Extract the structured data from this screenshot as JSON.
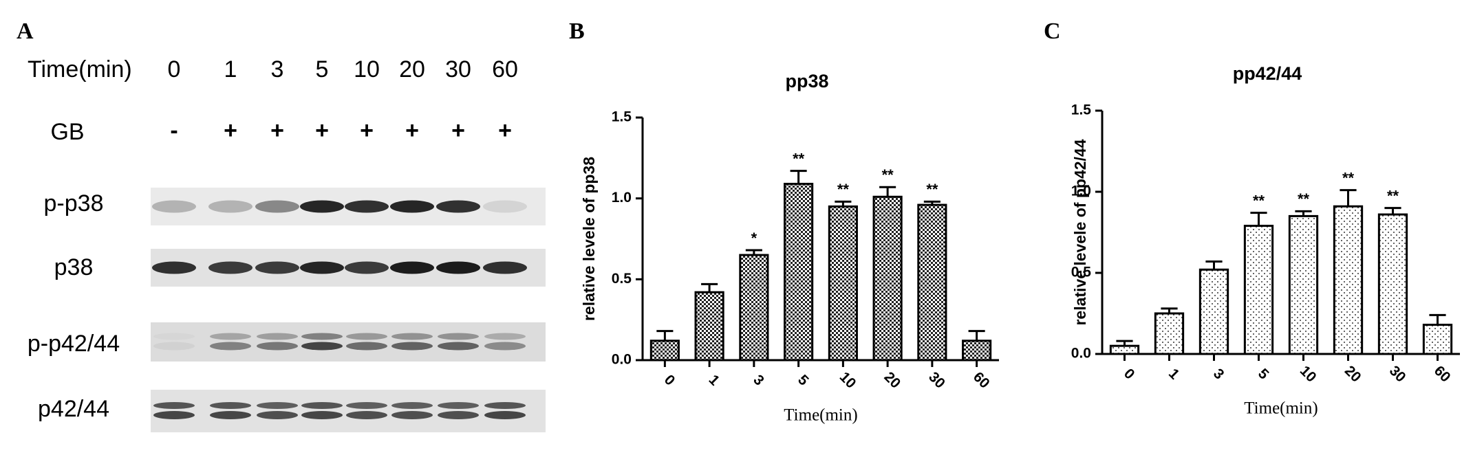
{
  "blot": {
    "panel": "A",
    "time_label": "Time(min)",
    "times": [
      "0",
      "1",
      "3",
      "5",
      "10",
      "20",
      "30",
      "60"
    ],
    "treatment_label": "GB",
    "treatments": [
      "-",
      "+",
      "+",
      "+",
      "+",
      "+",
      "+",
      "+"
    ],
    "bands": [
      "p-p38",
      "p38",
      "p-p42/44",
      "p42/44"
    ]
  },
  "chart_data": [
    {
      "type": "bar",
      "panel": "B",
      "title": "pp38",
      "y_label": "relative levele of pp38",
      "x_label": "Time(min)",
      "categories": [
        "0",
        "1",
        "3",
        "5",
        "10",
        "20",
        "30",
        "60"
      ],
      "values": [
        0.12,
        0.42,
        0.65,
        1.09,
        0.95,
        1.01,
        0.96,
        0.12
      ],
      "errors": [
        0.06,
        0.05,
        0.03,
        0.08,
        0.03,
        0.06,
        0.02,
        0.06
      ],
      "annotations": [
        null,
        null,
        "*",
        "**",
        "**",
        "**",
        "**",
        null
      ],
      "ylim": [
        0,
        1.5
      ],
      "yticks": [
        {
          "value": 0,
          "label": "0.0"
        },
        0.5,
        {
          "value": 1,
          "label": "1.0"
        },
        1.5
      ],
      "pattern": "checker",
      "color": "#000000"
    },
    {
      "type": "bar",
      "panel": "C",
      "title": "pp42/44",
      "y_label": "relative levele of pp42/44",
      "x_label": "Time(min)",
      "categories": [
        "0",
        "1",
        "3",
        "5",
        "10",
        "20",
        "30",
        "60"
      ],
      "values": [
        0.05,
        0.25,
        0.52,
        0.79,
        0.85,
        0.91,
        0.86,
        0.18
      ],
      "errors": [
        0.03,
        0.03,
        0.05,
        0.08,
        0.03,
        0.1,
        0.04,
        0.06
      ],
      "annotations": [
        null,
        null,
        null,
        "**",
        "**",
        "**",
        "**",
        null
      ],
      "ylim": [
        0,
        1.5
      ],
      "yticks": [
        {
          "value": 0,
          "label": "0.0"
        },
        0.5,
        {
          "value": 1,
          "label": "1.0"
        },
        1.5
      ],
      "pattern": "dots",
      "color": "#000000"
    }
  ]
}
